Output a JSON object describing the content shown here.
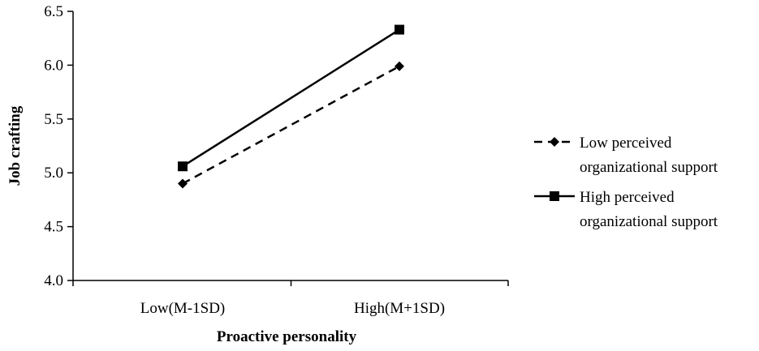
{
  "chart_data": {
    "type": "line",
    "title": "",
    "xlabel": "Proactive personality",
    "ylabel": "Job crafting",
    "categories": [
      "Low(M-1SD)",
      "High(M+1SD)"
    ],
    "ylim": [
      4.0,
      6.5
    ],
    "yticks": [
      "4.0",
      "4.5",
      "5.0",
      "5.5",
      "6.0",
      "6.5"
    ],
    "grid": false,
    "legend_position": "right",
    "series": [
      {
        "name_lines": [
          "Low perceived",
          "organizational support"
        ],
        "values": [
          4.9,
          5.99
        ],
        "line_style": "dashed",
        "marker": "diamond",
        "color": "#000000"
      },
      {
        "name_lines": [
          "High perceived",
          "organizational support"
        ],
        "values": [
          5.06,
          6.33
        ],
        "line_style": "solid",
        "marker": "square",
        "color": "#000000"
      }
    ]
  }
}
